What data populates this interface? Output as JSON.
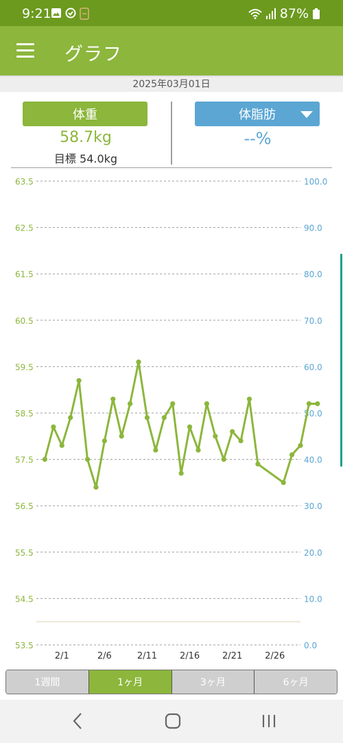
{
  "status_bar": {
    "time": "9:21",
    "battery": "87%"
  },
  "app_bar": {
    "title": "グラフ"
  },
  "date": "2025年03月01日",
  "weight_card": {
    "button_label": "体重",
    "value": "58.7kg",
    "target": "目標 54.0kg"
  },
  "fat_card": {
    "button_label": "体脂肪",
    "value": "--%"
  },
  "period_tabs": [
    "1週間",
    "1ヶ月",
    "3ヶ月",
    "6ヶ月"
  ],
  "selected_period": "1ヶ月",
  "colors": {
    "weight": "#8cb63c",
    "fat": "#5ba6d3",
    "app_bar": "#8cb63c",
    "status_bar": "#6b9a1e",
    "target_line": "#ece8d6"
  },
  "chart_data": {
    "type": "line",
    "left_axis": {
      "ticks": [
        "53.5",
        "54.5",
        "55.5",
        "56.5",
        "57.5",
        "58.5",
        "59.5",
        "60.5",
        "61.5",
        "62.5",
        "63.5"
      ],
      "range": [
        53.5,
        63.5
      ]
    },
    "right_axis": {
      "ticks": [
        "0.0",
        "10.0",
        "20.0",
        "30.0",
        "40.0",
        "50.0",
        "60.0",
        "70.0",
        "80.0",
        "90.0",
        "100.0"
      ],
      "range": [
        0,
        100
      ]
    },
    "x_ticks": [
      "2/1",
      "2/6",
      "2/11",
      "2/16",
      "2/21",
      "2/26"
    ],
    "x_range_days": [
      -2,
      29
    ],
    "target_value": 54.0,
    "series": [
      {
        "x": [
          -1,
          0,
          1,
          2,
          3,
          4,
          5,
          6,
          7,
          8,
          9,
          10,
          11,
          12,
          13,
          14,
          15,
          16,
          17,
          18,
          19,
          20,
          21,
          22,
          23,
          24,
          27,
          28,
          29,
          30,
          31
        ],
        "values": [
          57.5,
          58.2,
          57.8,
          58.4,
          59.2,
          57.5,
          56.9,
          57.9,
          58.8,
          58.0,
          58.7,
          59.6,
          58.4,
          57.7,
          58.4,
          58.7,
          57.2,
          58.2,
          57.7,
          58.7,
          58.0,
          57.5,
          58.1,
          57.9,
          58.8,
          57.4,
          57.0,
          57.6,
          57.8,
          58.7,
          58.7
        ]
      }
    ],
    "grid": true
  }
}
